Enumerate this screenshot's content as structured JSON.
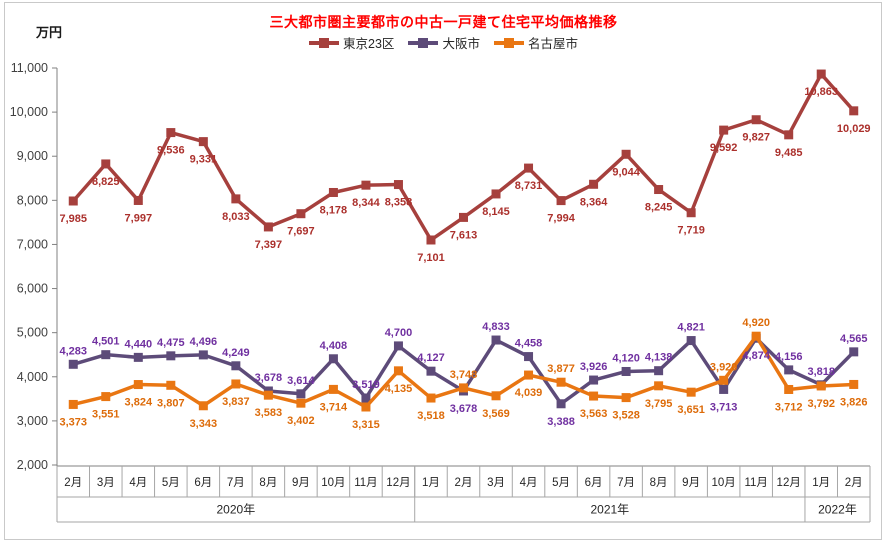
{
  "colors": {
    "title": "#FF0000",
    "axis_line": "#808080",
    "table_line": "#A6A6A6",
    "tick_text": "#404040",
    "category_text": "#262626"
  },
  "chart_data": {
    "type": "line",
    "title": "三大都市圏主要都市の中古一戸建て住宅平均価格推移",
    "ylabel": "万円",
    "xlabel": "",
    "ylim": [
      2000,
      11000
    ],
    "ytick_step": 1000,
    "grid": false,
    "legend_position": "top-center",
    "marker": "square",
    "categories": [
      "2月",
      "3月",
      "4月",
      "5月",
      "6月",
      "7月",
      "8月",
      "9月",
      "10月",
      "11月",
      "12月",
      "1月",
      "2月",
      "3月",
      "4月",
      "5月",
      "6月",
      "7月",
      "8月",
      "9月",
      "10月",
      "11月",
      "12月",
      "1月",
      "2月"
    ],
    "year_groups": [
      {
        "label": "2020年",
        "count": 11
      },
      {
        "label": "2021年",
        "count": 12
      },
      {
        "label": "2022年",
        "count": 2
      }
    ],
    "series": [
      {
        "name": "東京23区",
        "color": "#A6403D",
        "label_color": "#AB302C",
        "values": [
          7985,
          8825,
          7997,
          9536,
          9331,
          8033,
          7397,
          7697,
          8178,
          8344,
          8358,
          7101,
          7613,
          8145,
          8731,
          7994,
          8364,
          9044,
          8245,
          7719,
          9592,
          9827,
          9485,
          10863,
          10029
        ]
      },
      {
        "name": "大阪市",
        "color": "#5D4B79",
        "label_color": "#7030A0",
        "values": [
          4283,
          4501,
          4440,
          4475,
          4496,
          4249,
          3678,
          3614,
          4408,
          3519,
          4700,
          4127,
          3678,
          4833,
          4458,
          3388,
          3926,
          4120,
          4138,
          4821,
          3713,
          4874,
          4156,
          3818,
          4565
        ]
      },
      {
        "name": "名古屋市",
        "color": "#E97612",
        "label_color": "#DD6B09",
        "values": [
          3373,
          3551,
          3824,
          3807,
          3343,
          3837,
          3583,
          3402,
          3714,
          3315,
          4135,
          3518,
          3748,
          3569,
          4039,
          3877,
          3563,
          3528,
          3795,
          3651,
          3920,
          4920,
          3712,
          3792,
          3826
        ]
      }
    ]
  }
}
